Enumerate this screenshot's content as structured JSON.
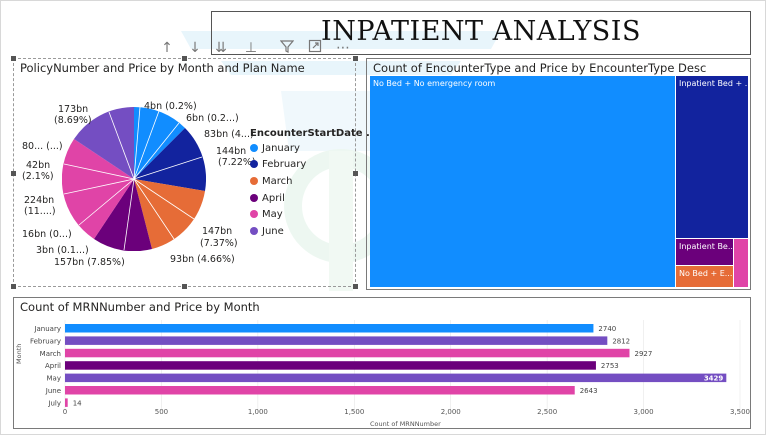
{
  "report": {
    "title": "INPATIENT ANALYSIS"
  },
  "toolbar": {
    "icons": [
      "arrow-up",
      "arrow-down",
      "double-arrow-down",
      "drill-hierarchy",
      "filter",
      "focus-mode",
      "more-options"
    ]
  },
  "pie_visual": {
    "title": "PolicyNumber and Price by Month and Plan Name",
    "legend_title": "EncounterStartDate ...",
    "legend": [
      {
        "label": "January",
        "color": "#118DFF"
      },
      {
        "label": "February",
        "color": "#12239E"
      },
      {
        "label": "March",
        "color": "#E66C37"
      },
      {
        "label": "April",
        "color": "#6B007B"
      },
      {
        "label": "May",
        "color": "#E044A7"
      },
      {
        "label": "June",
        "color": "#744EC2"
      }
    ],
    "labels": {
      "l1": "4bn (0.2%)",
      "l2": "6bn (0.2...)",
      "l3": "83bn (4...)",
      "l4a": "144bn",
      "l4b": "(7.22%)",
      "l5a": "147bn",
      "l5b": "(7.37%)",
      "l6": "93bn (4.66%)",
      "l7": "157bn (7.85%)",
      "l8": "3bn (0.1...)",
      "l9": "16bn (0...)",
      "l10a": "224bn",
      "l10b": "(11....)",
      "l11a": "42bn",
      "l11b": "(2.1%)",
      "l12": "80... (...)",
      "l13a": "173bn",
      "l13b": "(8.69%)"
    }
  },
  "treemap_visual": {
    "title": "Count of EncounterType and Price by EncounterType Desc",
    "cells": [
      {
        "label": "No Bed + No emergency room",
        "color": "#118DFF"
      },
      {
        "label": "Inpatient Bed + ...",
        "color": "#12239E"
      },
      {
        "label": "Inpatient Be...",
        "color": "#6B007B"
      },
      {
        "label": "No Bed + E...",
        "color": "#E66C37"
      },
      {
        "label": "",
        "color": "#E044A7"
      }
    ]
  },
  "chart_data": {
    "type": "bar",
    "orientation": "horizontal",
    "title": "Count of MRNNumber and Price by Month",
    "xlabel": "Count of MRNNumber",
    "ylabel": "Month",
    "categories": [
      "January",
      "February",
      "March",
      "April",
      "May",
      "June",
      "July"
    ],
    "values": [
      2740,
      2812,
      2927,
      2753,
      3429,
      2643,
      14
    ],
    "value_labels": [
      "2740",
      "2812",
      "2927",
      "2753",
      "3429",
      "2643",
      "14"
    ],
    "colors": [
      "#118DFF",
      "#744EC2",
      "#E044A7",
      "#6B007B",
      "#744EC2",
      "#E044A7",
      "#E044A7"
    ],
    "xlim": [
      0,
      3500
    ],
    "xticks": [
      0,
      500,
      1000,
      1500,
      2000,
      2500,
      3000,
      3500
    ],
    "xtick_labels": [
      "0",
      "500",
      "1,000",
      "1,500",
      "2,000",
      "2,500",
      "3,000",
      "3,500"
    ],
    "grid": true
  }
}
